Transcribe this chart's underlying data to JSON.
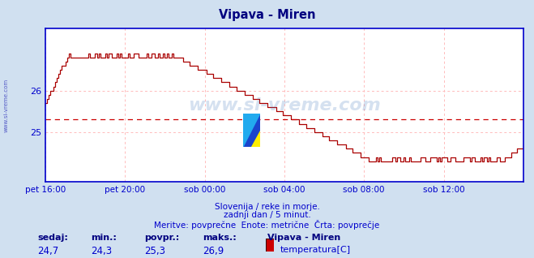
{
  "title": "Vipava - Miren",
  "title_color": "#000080",
  "bg_color": "#d0e0f0",
  "plot_bg_color": "#ffffff",
  "line_color": "#aa0000",
  "axis_color": "#0000cc",
  "grid_color": "#ffbbbb",
  "y_min": 23.8,
  "y_max": 27.5,
  "yticks": [
    25.0,
    26.0
  ],
  "avg_line_y": 25.3,
  "avg_line_color": "#cc0000",
  "watermark_text": "www.si-vreme.com",
  "sub_text1": "Slovenija / reke in morje.",
  "sub_text2": "zadnji dan / 5 minut.",
  "sub_text3": "Meritve: povprečne  Enote: metrične  Črta: povprečje",
  "footer_labels": [
    "sedaj:",
    "min.:",
    "povpr.:",
    "maks.:"
  ],
  "footer_values": [
    "24,7",
    "24,3",
    "25,3",
    "26,9"
  ],
  "footer_station": "Vipava - Miren",
  "footer_legend": "temperatura[C]",
  "footer_color": "#0000cc",
  "footer_label_color": "#000080",
  "x_tick_labels": [
    "pet 16:00",
    "pet 20:00",
    "sob 00:00",
    "sob 04:00",
    "sob 08:00",
    "sob 12:00"
  ],
  "x_tick_positions": [
    0,
    48,
    96,
    144,
    192,
    240
  ],
  "n_points": 289,
  "sidebar_text": "www.si-vreme.com",
  "sidebar_color": "#0000aa"
}
